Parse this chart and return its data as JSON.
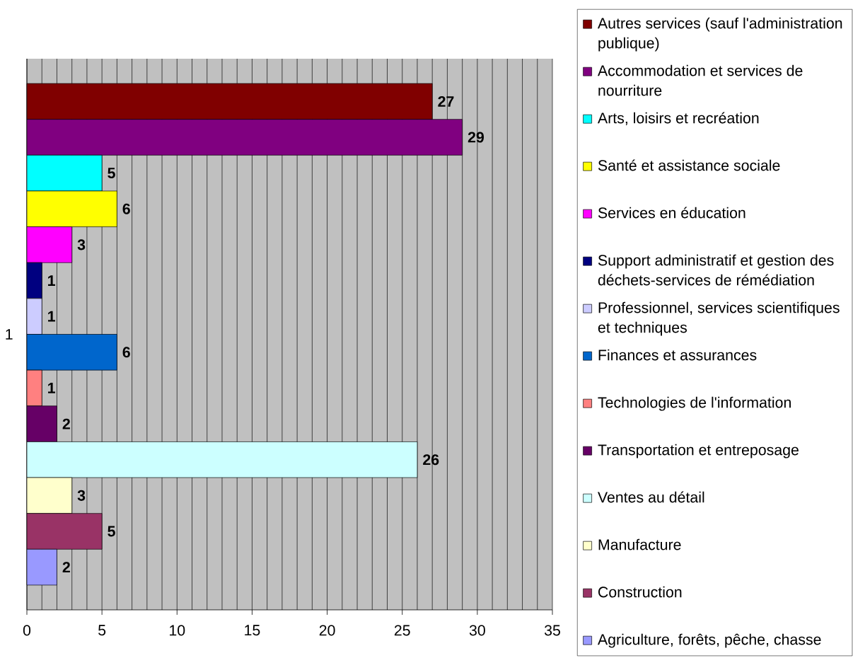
{
  "chart_data": {
    "type": "bar",
    "orientation": "horizontal",
    "categories": [
      "1"
    ],
    "series": [
      {
        "name": "Autres services (sauf l'administration publique)",
        "color": "#800000",
        "values": [
          27
        ]
      },
      {
        "name": "Accommodation et services de nourriture",
        "color": "#800080",
        "values": [
          29
        ]
      },
      {
        "name": "Arts, loisirs et recréation",
        "color": "#00ffff",
        "values": [
          5
        ]
      },
      {
        "name": "Santé et assistance sociale",
        "color": "#ffff00",
        "values": [
          6
        ]
      },
      {
        "name": "Services en éducation",
        "color": "#ff00ff",
        "values": [
          3
        ]
      },
      {
        "name": "Support administratif et gestion des déchets-services de rémédiation",
        "color": "#000080",
        "values": [
          1
        ]
      },
      {
        "name": "Professionnel, services scientifiques et techniques",
        "color": "#ccccff",
        "values": [
          1
        ]
      },
      {
        "name": "Finances et assurances",
        "color": "#0066cc",
        "values": [
          6
        ]
      },
      {
        "name": "Technologies de l'information",
        "color": "#ff8080",
        "values": [
          1
        ]
      },
      {
        "name": "Transportation et entreposage",
        "color": "#660066",
        "values": [
          2
        ]
      },
      {
        "name": "Ventes au détail",
        "color": "#ccffff",
        "values": [
          26
        ]
      },
      {
        "name": "Manufacture",
        "color": "#ffffcc",
        "values": [
          3
        ]
      },
      {
        "name": "Construction",
        "color": "#993366",
        "values": [
          5
        ]
      },
      {
        "name": "Agriculture, forêts, pêche, chasse",
        "color": "#9999ff",
        "values": [
          2
        ]
      }
    ],
    "xlim": [
      0,
      35
    ],
    "xticks": [
      0,
      5,
      10,
      15,
      20,
      25,
      30,
      35
    ],
    "grid": "x",
    "legend": "right",
    "data_labels": true
  }
}
